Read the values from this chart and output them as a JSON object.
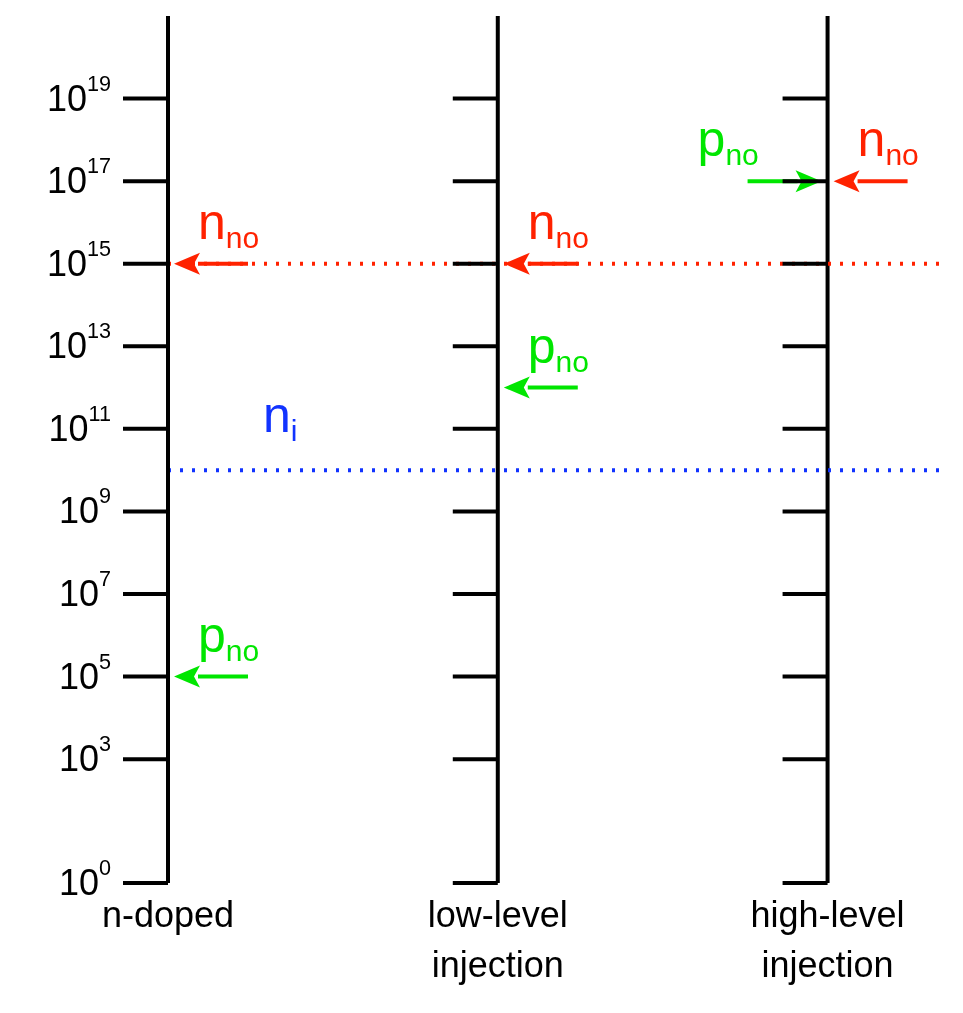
{
  "chart_data": {
    "type": "scatter",
    "log": "y",
    "legend": false,
    "grid": "x",
    "categories": [
      "n-doped",
      "low-level injection",
      "high-level injection"
    ],
    "series": [
      {
        "name": "n$_{no}$",
        "color": "#ff2200",
        "values": [
          1000000000000000.0,
          1000000000000000.0,
          1e+17
        ]
      },
      {
        "name": "p$_{no}$",
        "color": "#00e600",
        "values": [
          100000.0,
          1000000000000.0,
          1e+17
        ]
      }
    ],
    "ylim": [
      1,
      1e+21
    ],
    "yticks": [
      {
        "value": 1,
        "label": "10$^{0}$"
      },
      {
        "value": 1000.0,
        "label": "10$^{3}$"
      },
      {
        "value": 100000.0,
        "label": "10$^{5}$"
      },
      {
        "value": 10000000.0,
        "label": "10$^{7}$"
      },
      {
        "value": 1000000000.0,
        "label": "10$^{9}$"
      },
      {
        "value": 100000000000.0,
        "label": "10$^{11}$"
      },
      {
        "value": 10000000000000.0,
        "label": "10$^{13}$"
      },
      {
        "value": 1000000000000000.0,
        "label": "10$^{15}$"
      },
      {
        "value": 1e+17,
        "label": "10$^{17}$"
      },
      {
        "value": 1e+19,
        "label": "10$^{19}$"
      }
    ],
    "ref_lines": [
      {
        "axis": "y",
        "value": 1000000000000000.0,
        "color": "#ff2200",
        "line_style": "dotted"
      },
      {
        "axis": "y",
        "value": 10000000000.0,
        "label": "n$_{i}$",
        "color": "#1133ff",
        "line_style": "dotted"
      }
    ]
  }
}
